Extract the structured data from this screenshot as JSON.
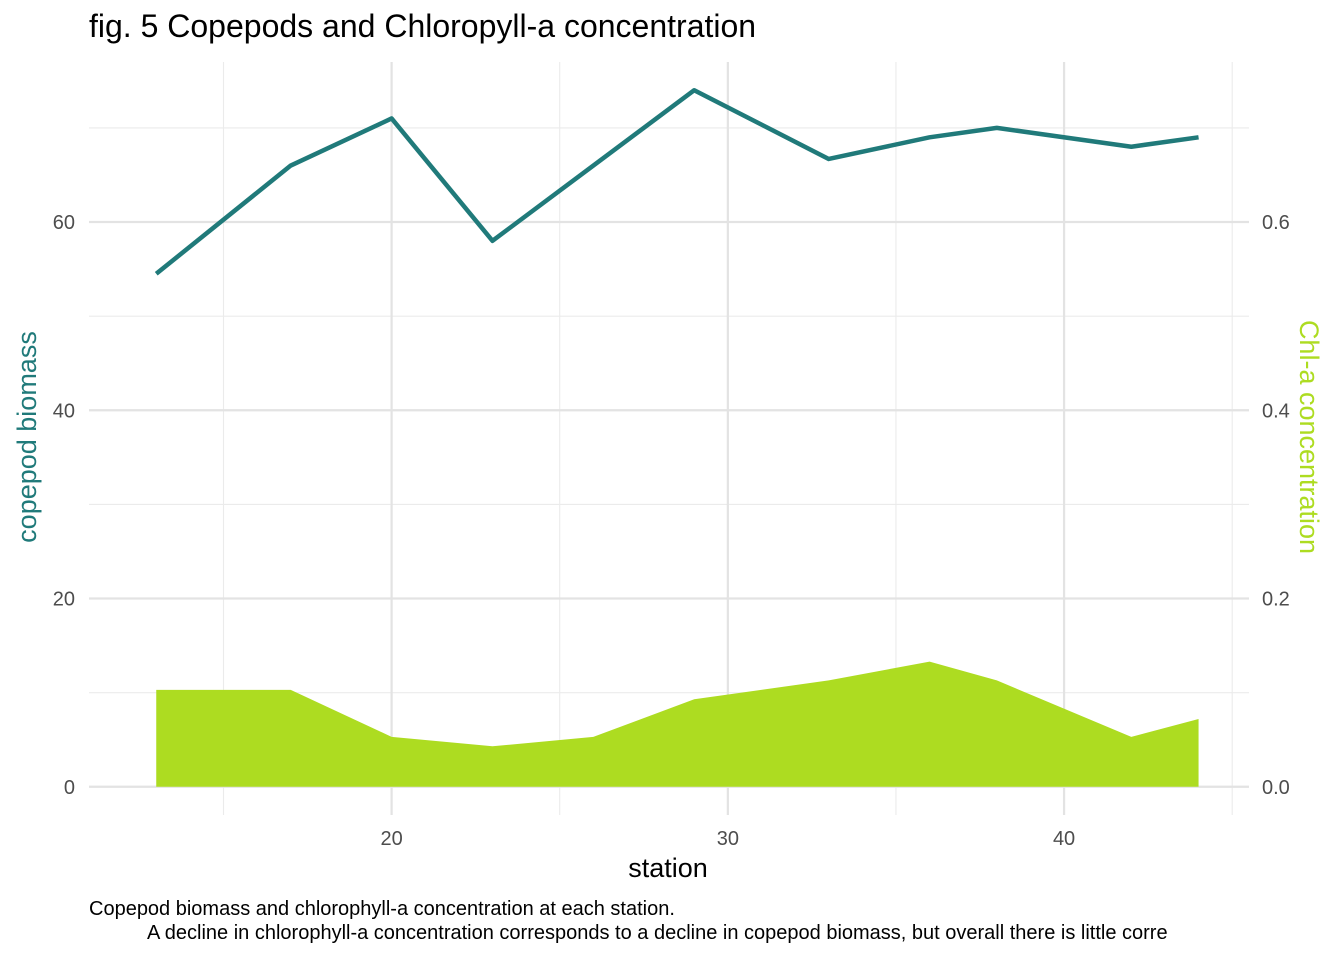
{
  "chart_data": {
    "type": "line",
    "title": "fig. 5 Copepods and Chloropyll-a concentration",
    "xlabel": "station",
    "ylabel": "copepod biomass",
    "y2label": "Chl-a concentration",
    "xlim": [
      11,
      45.5
    ],
    "ylim": [
      -3,
      77
    ],
    "y2lim": [
      -0.03,
      0.77
    ],
    "x_ticks": [
      20,
      30,
      40
    ],
    "y_ticks": [
      0,
      20,
      40,
      60
    ],
    "y2_ticks": [
      "0.0",
      "0.2",
      "0.4",
      "0.6"
    ],
    "grid": true,
    "series": [
      {
        "name": "copepod biomass",
        "type": "line",
        "axis": "left",
        "color": "#207a7a",
        "x": [
          13,
          17,
          20,
          23,
          26,
          29,
          33,
          36,
          38,
          42,
          44
        ],
        "y": [
          54.5,
          66,
          71,
          58,
          66,
          74,
          66.7,
          69,
          70,
          68,
          69
        ]
      },
      {
        "name": "Chl-a concentration",
        "type": "area",
        "axis": "right",
        "color": "#addc21",
        "x": [
          13,
          17,
          20,
          23,
          26,
          29,
          33,
          36,
          38,
          42,
          44
        ],
        "y": [
          0.103,
          0.103,
          0.053,
          0.043,
          0.053,
          0.093,
          0.113,
          0.133,
          0.113,
          0.053,
          0.072
        ]
      }
    ]
  },
  "caption": {
    "line1": "Copepod biomass and chlorophyll-a concentration at each station.",
    "line2": "A decline in chlorophyll-a concentration corresponds to a decline in copepod biomass, but overall there is little corre"
  }
}
